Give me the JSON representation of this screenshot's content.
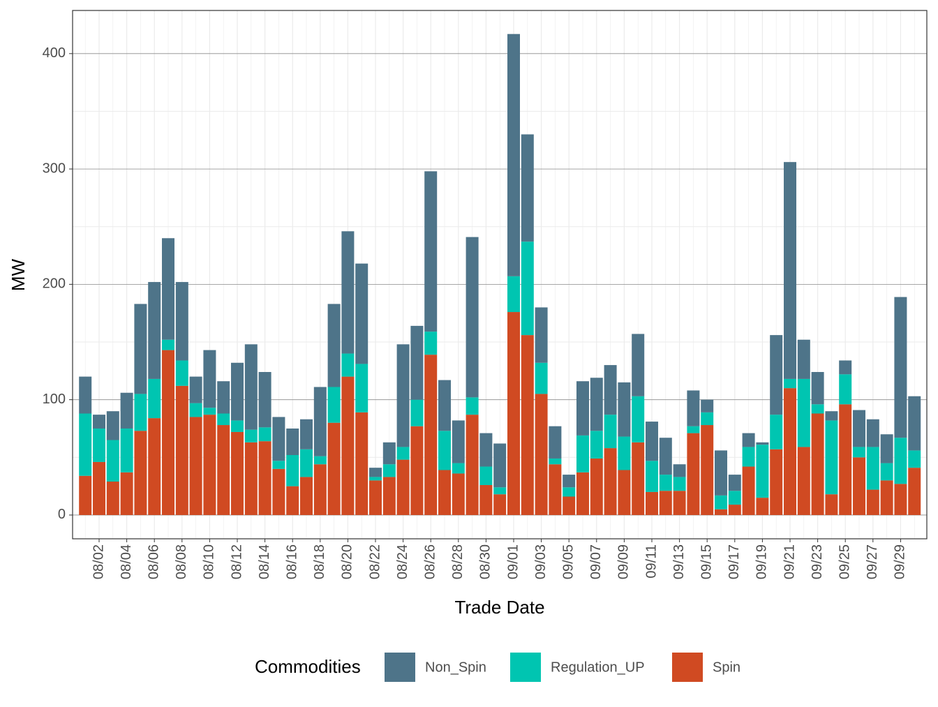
{
  "chart_data": {
    "type": "stacked_bar",
    "x_label": "Trade Date",
    "y_label": "MW",
    "legend_title": "Commodities",
    "categories": [
      null,
      "08/02",
      null,
      "08/04",
      null,
      "08/06",
      null,
      "08/08",
      null,
      "08/10",
      null,
      "08/12",
      null,
      "08/14",
      null,
      "08/16",
      null,
      "08/18",
      null,
      "08/20",
      null,
      "08/22",
      null,
      "08/24",
      null,
      "08/26",
      null,
      "08/28",
      null,
      "08/30",
      null,
      "09/01",
      null,
      "09/03",
      null,
      "09/05",
      null,
      "09/07",
      null,
      "09/09",
      null,
      "09/11",
      null,
      "09/13",
      null,
      "09/15",
      null,
      "09/17",
      null,
      "09/19",
      null,
      "09/21",
      null,
      "09/23",
      null,
      "09/25",
      null,
      "09/27",
      null,
      "09/29",
      null
    ],
    "series": [
      {
        "name": "Non_Spin",
        "color": "#4e7489",
        "values": [
          32,
          12,
          25,
          31,
          78,
          84,
          88,
          68,
          23,
          50,
          28,
          50,
          74,
          48,
          38,
          23,
          26,
          60,
          72,
          106,
          87,
          8,
          19,
          89,
          64,
          139,
          44,
          37,
          139,
          29,
          38,
          210,
          93,
          48,
          28,
          11,
          47,
          46,
          43,
          47,
          54,
          34,
          32,
          11,
          31,
          11,
          39,
          14,
          12,
          2,
          69,
          188,
          34,
          28,
          8,
          12,
          32,
          24,
          25,
          122,
          47
        ]
      },
      {
        "name": "Regulation_UP",
        "color": "#00c5b1",
        "values": [
          54,
          29,
          36,
          38,
          32,
          34,
          9,
          22,
          12,
          6,
          10,
          10,
          11,
          12,
          7,
          27,
          24,
          7,
          31,
          20,
          42,
          3,
          11,
          11,
          23,
          20,
          34,
          9,
          15,
          16,
          6,
          31,
          81,
          27,
          5,
          8,
          32,
          24,
          29,
          29,
          40,
          27,
          14,
          12,
          6,
          11,
          12,
          12,
          17,
          46,
          30,
          8,
          59,
          8,
          64,
          26,
          9,
          37,
          15,
          40,
          15
        ]
      },
      {
        "name": "Spin",
        "color": "#d04a22",
        "values": [
          34,
          46,
          29,
          37,
          73,
          84,
          143,
          112,
          85,
          87,
          78,
          72,
          63,
          64,
          40,
          25,
          33,
          44,
          80,
          120,
          89,
          30,
          33,
          48,
          77,
          139,
          39,
          36,
          87,
          26,
          18,
          176,
          156,
          105,
          44,
          16,
          37,
          49,
          58,
          39,
          63,
          20,
          21,
          21,
          71,
          78,
          5,
          9,
          42,
          15,
          57,
          110,
          59,
          88,
          18,
          96,
          50,
          22,
          30,
          27,
          41
        ]
      }
    ],
    "ylim": [
      -20.6,
      437.4
    ],
    "yticks": [
      0,
      100,
      200,
      300,
      400
    ],
    "grid": true,
    "legend": "bottom"
  }
}
